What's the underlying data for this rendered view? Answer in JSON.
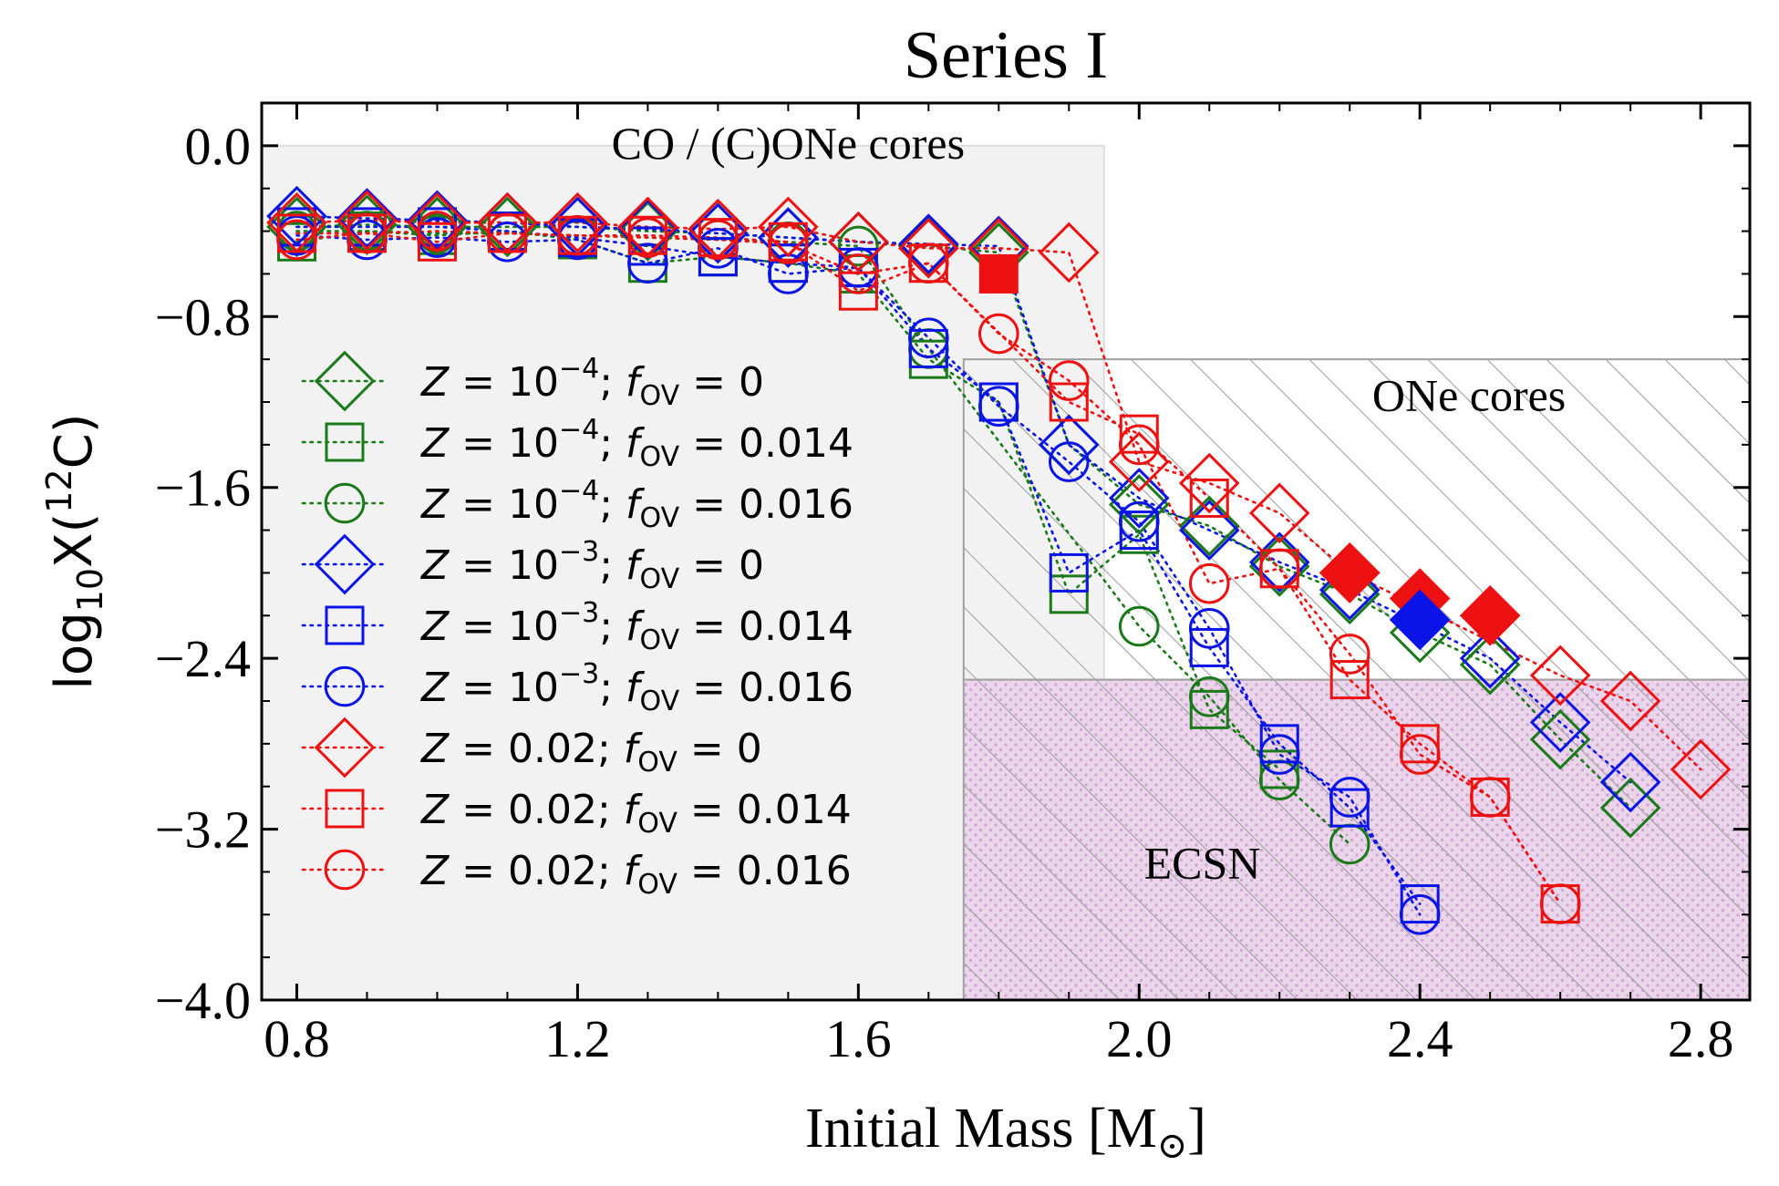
{
  "chart_data": {
    "type": "scatter",
    "title": "Series I",
    "xlabel_main": "Initial Mass [M",
    "xlabel_sub": "⊙",
    "xlabel_end": "]",
    "ylabel_pre": "log",
    "ylabel_sub": "10",
    "ylabel_mid": "X(",
    "ylabel_sup": "12",
    "ylabel_end": "C)",
    "xlim": [
      0.75,
      2.87
    ],
    "ylim": [
      -4.0,
      0.2
    ],
    "xticks": [
      "0.8",
      "1.2",
      "1.6",
      "2.0",
      "2.4",
      "2.8"
    ],
    "yticks": [
      "0.0",
      "−0.8",
      "−1.6",
      "−2.4",
      "−3.2",
      "−4.0"
    ],
    "xtick_values": [
      0.8,
      1.2,
      1.6,
      2.0,
      2.4,
      2.8
    ],
    "ytick_values": [
      0.0,
      -0.8,
      -1.6,
      -2.4,
      -3.2,
      -4.0
    ],
    "grid": false,
    "legend_position": "left",
    "regions": [
      {
        "label": "CO / (C)ONe cores",
        "x": [
          0.75,
          1.95
        ],
        "y": [
          -4.0,
          0.0
        ],
        "fill": "#f2f2f2"
      },
      {
        "label": "ONe cores",
        "x": [
          1.75,
          2.87
        ],
        "y": [
          -2.5,
          -1.0
        ],
        "pattern": "hatch"
      },
      {
        "label": "ECSN",
        "x": [
          1.75,
          2.87
        ],
        "y": [
          -4.0,
          -2.5
        ],
        "fill": "#ead5ea",
        "pattern": "hatch-dots"
      }
    ],
    "series": [
      {
        "z": "10",
        "zexp": "−4",
        "fov": "0",
        "color": "#1a7a1a",
        "marker": "diamond",
        "x": [
          0.8,
          0.9,
          1.0,
          1.1,
          1.2,
          1.3,
          1.4,
          1.5,
          1.6,
          1.7,
          1.8,
          1.9,
          2.0,
          2.1,
          2.2,
          2.3,
          2.4,
          2.5,
          2.6,
          2.7
        ],
        "y": [
          -0.38,
          -0.37,
          -0.38,
          -0.38,
          -0.38,
          -0.4,
          -0.41,
          -0.43,
          -0.45,
          -0.47,
          -0.5,
          -1.4,
          -1.68,
          -1.78,
          -1.97,
          -2.1,
          -2.28,
          -2.43,
          -2.78,
          -3.1
        ]
      },
      {
        "z": "10",
        "zexp": "−4",
        "fov": "0.014",
        "color": "#1a7a1a",
        "marker": "square",
        "x": [
          0.8,
          0.9,
          1.0,
          1.1,
          1.2,
          1.3,
          1.4,
          1.5,
          1.6,
          1.7,
          1.8,
          1.9,
          2.0,
          2.1,
          2.2
        ],
        "y": [
          -0.45,
          -0.4,
          -0.42,
          -0.4,
          -0.44,
          -0.55,
          -0.52,
          -0.55,
          -0.6,
          -1.0,
          -1.2,
          -2.1,
          -1.82,
          -2.64,
          -2.92
        ]
      },
      {
        "z": "10",
        "zexp": "−4",
        "fov": "0.016",
        "color": "#1a7a1a",
        "marker": "circle",
        "x": [
          0.8,
          0.9,
          1.0,
          1.1,
          1.2,
          1.3,
          1.4,
          1.5,
          1.6,
          1.7,
          2.0,
          2.1,
          2.2,
          2.3
        ],
        "y": [
          -0.4,
          -0.4,
          -0.41,
          -0.41,
          -0.42,
          -0.43,
          -0.44,
          -0.45,
          -0.47,
          -0.95,
          -2.25,
          -2.58,
          -2.97,
          -3.27
        ]
      },
      {
        "z": "10",
        "zexp": "−3",
        "fov": "0",
        "color": "#0a14e6",
        "marker": "diamond",
        "x": [
          0.8,
          0.9,
          1.0,
          1.1,
          1.2,
          1.3,
          1.4,
          1.5,
          1.6,
          1.7,
          1.8,
          1.9,
          2.0,
          2.1,
          2.2,
          2.3,
          2.5,
          2.6,
          2.7
        ],
        "y": [
          -0.33,
          -0.34,
          -0.35,
          -0.36,
          -0.38,
          -0.39,
          -0.41,
          -0.43,
          -0.45,
          -0.46,
          -0.47,
          -1.4,
          -1.65,
          -1.8,
          -1.95,
          -2.08,
          -2.4,
          -2.7,
          -2.98
        ]
      },
      {
        "z": "10",
        "zexp": "−3",
        "fov": "0.014",
        "color": "#0a14e6",
        "marker": "square",
        "x": [
          0.8,
          0.9,
          1.0,
          1.1,
          1.2,
          1.3,
          1.4,
          1.5,
          1.6,
          1.7,
          1.8,
          1.9,
          2.0,
          2.1,
          2.2,
          2.3,
          2.4
        ],
        "y": [
          -0.38,
          -0.38,
          -0.38,
          -0.4,
          -0.43,
          -0.47,
          -0.52,
          -0.55,
          -0.57,
          -0.95,
          -1.2,
          -2.0,
          -1.8,
          -2.35,
          -2.8,
          -3.1,
          -3.55
        ]
      },
      {
        "z": "10",
        "zexp": "−3",
        "fov": "0.016",
        "color": "#0a14e6",
        "marker": "circle",
        "x": [
          0.8,
          0.9,
          1.0,
          1.1,
          1.2,
          1.3,
          1.4,
          1.5,
          1.6,
          1.7,
          1.8,
          1.9,
          2.0,
          2.1,
          2.2,
          2.3,
          2.4
        ],
        "y": [
          -0.42,
          -0.44,
          -0.43,
          -0.45,
          -0.44,
          -0.55,
          -0.48,
          -0.6,
          -0.57,
          -0.9,
          -1.22,
          -1.48,
          -1.76,
          -2.26,
          -2.85,
          -3.05,
          -3.6
        ]
      },
      {
        "z": "0.02",
        "zexp": "",
        "fov": "0",
        "color": "#ee1111",
        "marker": "diamond",
        "x": [
          0.8,
          0.9,
          1.0,
          1.1,
          1.2,
          1.3,
          1.4,
          1.5,
          1.6,
          1.7,
          1.8,
          1.9,
          2.0,
          2.1,
          2.2,
          2.3,
          2.6,
          2.7,
          2.8
        ],
        "y": [
          -0.36,
          -0.35,
          -0.36,
          -0.36,
          -0.36,
          -0.38,
          -0.39,
          -0.38,
          -0.45,
          -0.48,
          -0.48,
          -0.5,
          -1.48,
          -1.58,
          -1.72,
          -2.0,
          -2.48,
          -2.6,
          -2.92
        ]
      },
      {
        "z": "0.02",
        "zexp": "",
        "fov": "0.014",
        "color": "#ee1111",
        "marker": "square",
        "x": [
          0.8,
          0.9,
          1.0,
          1.1,
          1.2,
          1.3,
          1.4,
          1.5,
          1.6,
          1.7,
          1.9,
          2.0,
          2.1,
          2.2,
          2.3,
          2.4,
          2.5,
          2.6
        ],
        "y": [
          -0.41,
          -0.41,
          -0.45,
          -0.41,
          -0.42,
          -0.42,
          -0.43,
          -0.45,
          -0.68,
          -0.55,
          -1.2,
          -1.35,
          -1.65,
          -1.98,
          -2.5,
          -2.8,
          -3.05,
          -3.55
        ]
      },
      {
        "z": "0.02",
        "zexp": "",
        "fov": "0.016",
        "color": "#ee1111",
        "marker": "circle",
        "x": [
          0.8,
          0.9,
          1.0,
          1.1,
          1.2,
          1.3,
          1.4,
          1.5,
          1.6,
          1.7,
          1.8,
          1.9,
          2.0,
          2.1,
          2.2,
          2.3,
          2.4,
          2.5,
          2.6
        ],
        "y": [
          -0.44,
          -0.41,
          -0.4,
          -0.41,
          -0.42,
          -0.43,
          -0.44,
          -0.46,
          -0.6,
          -0.55,
          -0.88,
          -1.1,
          -1.4,
          -2.05,
          -1.98,
          -2.38,
          -2.85,
          -3.05,
          -3.55
        ]
      }
    ],
    "filled_points": [
      {
        "x": 1.8,
        "y": -0.6,
        "color": "#ee1111",
        "marker": "square"
      },
      {
        "x": 2.3,
        "y": -2.0,
        "color": "#ee1111",
        "marker": "diamond"
      },
      {
        "x": 2.4,
        "y": -2.12,
        "color": "#ee1111",
        "marker": "diamond"
      },
      {
        "x": 2.5,
        "y": -2.2,
        "color": "#ee1111",
        "marker": "diamond"
      },
      {
        "x": 2.4,
        "y": -2.22,
        "color": "#0a14e6",
        "marker": "diamond"
      }
    ]
  }
}
